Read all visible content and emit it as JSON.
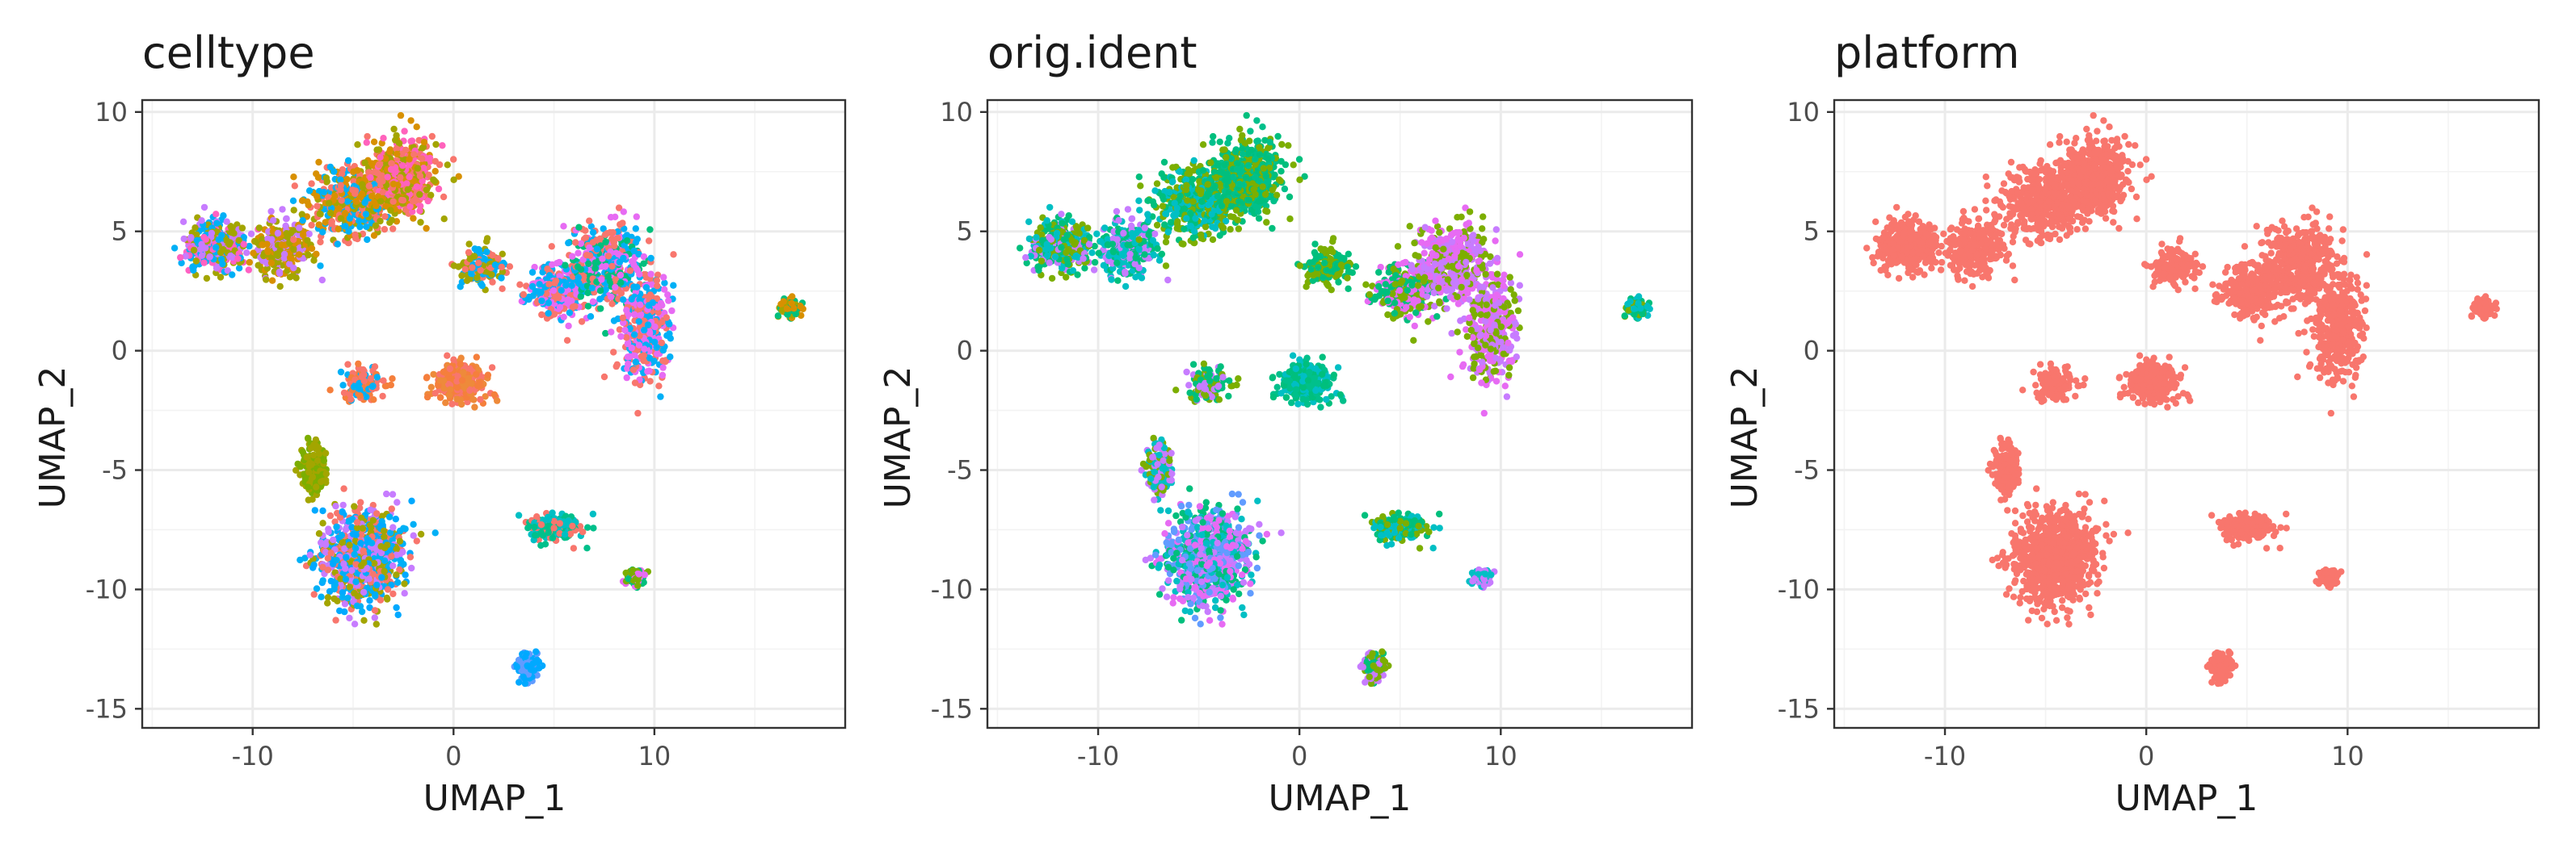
{
  "chart_data": [
    {
      "type": "scatter",
      "title": "celltype",
      "xlabel": "UMAP_1",
      "ylabel": "UMAP_2",
      "xlim": [
        -15.5,
        19.5
      ],
      "ylim": [
        -15.8,
        10.5
      ],
      "xticks": [
        -10,
        0,
        10
      ],
      "yticks": [
        10,
        5,
        0,
        -5,
        -10,
        -15
      ],
      "grid": true,
      "legend": "none",
      "clusters": [
        {
          "cx": -11.8,
          "cy": 4.4,
          "sx": 1.5,
          "sy": 0.9,
          "n": 340,
          "colors": [
            "#C77CFF",
            "#FF61C3",
            "#A3A500",
            "#00B0F6"
          ]
        },
        {
          "cx": -8.5,
          "cy": 4.3,
          "sx": 1.4,
          "sy": 1.1,
          "n": 280,
          "colors": [
            "#A3A500",
            "#D89000",
            "#C77CFF"
          ]
        },
        {
          "cx": -5.0,
          "cy": 6.2,
          "sx": 2.0,
          "sy": 1.3,
          "n": 420,
          "colors": [
            "#D89000",
            "#A3A500",
            "#00B0F6",
            "#F8766D"
          ]
        },
        {
          "cx": -2.5,
          "cy": 7.4,
          "sx": 1.6,
          "sy": 1.4,
          "n": 420,
          "colors": [
            "#F8766D",
            "#D89000",
            "#FF62BC",
            "#A3A500"
          ]
        },
        {
          "cx": 1.5,
          "cy": 3.5,
          "sx": 1.0,
          "sy": 0.7,
          "n": 160,
          "colors": [
            "#00B0F6",
            "#A3A500",
            "#F8766D"
          ]
        },
        {
          "cx": 5.3,
          "cy": 2.5,
          "sx": 1.4,
          "sy": 1.0,
          "n": 300,
          "colors": [
            "#F8766D",
            "#E76BF3",
            "#00B0F6"
          ]
        },
        {
          "cx": 7.6,
          "cy": 3.6,
          "sx": 1.5,
          "sy": 1.5,
          "n": 420,
          "colors": [
            "#F8766D",
            "#E76BF3",
            "#00B0F6",
            "#00BF7D"
          ]
        },
        {
          "cx": 9.5,
          "cy": 1.0,
          "sx": 1.1,
          "sy": 2.0,
          "n": 380,
          "colors": [
            "#F8766D",
            "#E76BF3",
            "#00B0F6"
          ]
        },
        {
          "cx": 16.7,
          "cy": 1.8,
          "sx": 0.55,
          "sy": 0.35,
          "n": 80,
          "colors": [
            "#A3A500",
            "#D89000",
            "#00BF7D"
          ]
        },
        {
          "cx": -4.5,
          "cy": -1.4,
          "sx": 0.9,
          "sy": 0.6,
          "n": 120,
          "colors": [
            "#F8766D",
            "#F57F3C",
            "#00B0F6"
          ]
        },
        {
          "cx": 0.2,
          "cy": -1.3,
          "sx": 1.2,
          "sy": 0.8,
          "n": 260,
          "colors": [
            "#F57F3C",
            "#EE8A3A",
            "#F8766D"
          ]
        },
        {
          "cx": -7.0,
          "cy": -5.0,
          "sx": 0.6,
          "sy": 1.0,
          "n": 140,
          "colors": [
            "#A3A500",
            "#7CAE00"
          ]
        },
        {
          "cx": -4.6,
          "cy": -8.6,
          "sx": 1.8,
          "sy": 1.7,
          "n": 900,
          "colors": [
            "#00B0F6",
            "#00A9FF",
            "#C77CFF",
            "#F8766D",
            "#A3A500"
          ]
        },
        {
          "cx": 5.0,
          "cy": -7.4,
          "sx": 1.2,
          "sy": 0.5,
          "n": 200,
          "colors": [
            "#00BFC4",
            "#00C08B",
            "#F8766D"
          ]
        },
        {
          "cx": 9.0,
          "cy": -9.5,
          "sx": 0.45,
          "sy": 0.3,
          "n": 70,
          "colors": [
            "#00BF7D",
            "#7CAE00",
            "#E76BF3"
          ]
        },
        {
          "cx": 3.7,
          "cy": -13.3,
          "sx": 0.55,
          "sy": 0.6,
          "n": 110,
          "colors": [
            "#619CFF",
            "#00A9FF"
          ]
        }
      ]
    },
    {
      "type": "scatter",
      "title": "orig.ident",
      "xlabel": "UMAP_1",
      "ylabel": "UMAP_2",
      "xlim": [
        -15.5,
        19.5
      ],
      "ylim": [
        -15.8,
        10.5
      ],
      "xticks": [
        -10,
        0,
        10
      ],
      "yticks": [
        10,
        5,
        0,
        -5,
        -10,
        -15
      ],
      "grid": true,
      "legend": "none",
      "clusters": [
        {
          "cx": -11.8,
          "cy": 4.4,
          "sx": 1.5,
          "sy": 0.9,
          "n": 340,
          "colors": [
            "#00BFC4",
            "#C77CFF",
            "#7CAE00",
            "#00BF7D"
          ]
        },
        {
          "cx": -8.5,
          "cy": 4.3,
          "sx": 1.4,
          "sy": 1.1,
          "n": 280,
          "colors": [
            "#00BFC4",
            "#00BF7D",
            "#C77CFF"
          ]
        },
        {
          "cx": -5.0,
          "cy": 6.2,
          "sx": 2.0,
          "sy": 1.3,
          "n": 420,
          "colors": [
            "#00BF7D",
            "#00BFC4",
            "#7CAE00"
          ]
        },
        {
          "cx": -2.5,
          "cy": 7.4,
          "sx": 1.6,
          "sy": 1.4,
          "n": 420,
          "colors": [
            "#00BF7D",
            "#00C08B",
            "#7CAE00"
          ]
        },
        {
          "cx": 1.5,
          "cy": 3.5,
          "sx": 1.0,
          "sy": 0.7,
          "n": 160,
          "colors": [
            "#7CAE00",
            "#00BF7D"
          ]
        },
        {
          "cx": 5.3,
          "cy": 2.5,
          "sx": 1.4,
          "sy": 1.0,
          "n": 300,
          "colors": [
            "#7CAE00",
            "#E76BF3",
            "#00BF7D"
          ]
        },
        {
          "cx": 7.6,
          "cy": 3.6,
          "sx": 1.5,
          "sy": 1.5,
          "n": 420,
          "colors": [
            "#E76BF3",
            "#7CAE00",
            "#C77CFF"
          ]
        },
        {
          "cx": 9.5,
          "cy": 1.0,
          "sx": 1.1,
          "sy": 2.0,
          "n": 380,
          "colors": [
            "#E76BF3",
            "#7CAE00",
            "#C77CFF"
          ]
        },
        {
          "cx": 16.7,
          "cy": 1.8,
          "sx": 0.55,
          "sy": 0.35,
          "n": 80,
          "colors": [
            "#7CAE00",
            "#00BFC4",
            "#00BF7D"
          ]
        },
        {
          "cx": -4.5,
          "cy": -1.4,
          "sx": 0.9,
          "sy": 0.6,
          "n": 120,
          "colors": [
            "#00BF7D",
            "#7CAE00",
            "#C77CFF"
          ]
        },
        {
          "cx": 0.2,
          "cy": -1.3,
          "sx": 1.2,
          "sy": 0.8,
          "n": 260,
          "colors": [
            "#00BF7D",
            "#00C08B",
            "#00BFC4"
          ]
        },
        {
          "cx": -7.0,
          "cy": -5.0,
          "sx": 0.6,
          "sy": 1.0,
          "n": 140,
          "colors": [
            "#C77CFF",
            "#00BFC4",
            "#7CAE00"
          ]
        },
        {
          "cx": -4.6,
          "cy": -8.6,
          "sx": 1.8,
          "sy": 1.7,
          "n": 900,
          "colors": [
            "#C77CFF",
            "#00BFC4",
            "#619CFF",
            "#00BF7D",
            "#E76BF3"
          ]
        },
        {
          "cx": 5.0,
          "cy": -7.4,
          "sx": 1.2,
          "sy": 0.5,
          "n": 200,
          "colors": [
            "#00BF7D",
            "#00BFC4",
            "#7CAE00"
          ]
        },
        {
          "cx": 9.0,
          "cy": -9.5,
          "sx": 0.45,
          "sy": 0.3,
          "n": 70,
          "colors": [
            "#C77CFF",
            "#00BFC4"
          ]
        },
        {
          "cx": 3.7,
          "cy": -13.3,
          "sx": 0.55,
          "sy": 0.6,
          "n": 110,
          "colors": [
            "#00BF7D",
            "#C77CFF",
            "#7CAE00"
          ]
        }
      ]
    },
    {
      "type": "scatter",
      "title": "platform",
      "xlabel": "UMAP_1",
      "ylabel": "UMAP_2",
      "xlim": [
        -15.5,
        19.5
      ],
      "ylim": [
        -15.8,
        10.5
      ],
      "xticks": [
        -10,
        0,
        10
      ],
      "yticks": [
        10,
        5,
        0,
        -5,
        -10,
        -15
      ],
      "grid": true,
      "legend": "none",
      "clusters": [
        {
          "cx": -11.8,
          "cy": 4.4,
          "sx": 1.5,
          "sy": 0.9,
          "n": 340,
          "colors": [
            "#F8766D"
          ]
        },
        {
          "cx": -8.5,
          "cy": 4.3,
          "sx": 1.4,
          "sy": 1.1,
          "n": 280,
          "colors": [
            "#F8766D"
          ]
        },
        {
          "cx": -5.0,
          "cy": 6.2,
          "sx": 2.0,
          "sy": 1.3,
          "n": 420,
          "colors": [
            "#F8766D"
          ]
        },
        {
          "cx": -2.5,
          "cy": 7.4,
          "sx": 1.6,
          "sy": 1.4,
          "n": 420,
          "colors": [
            "#F8766D"
          ]
        },
        {
          "cx": 1.5,
          "cy": 3.5,
          "sx": 1.0,
          "sy": 0.7,
          "n": 160,
          "colors": [
            "#F8766D"
          ]
        },
        {
          "cx": 5.3,
          "cy": 2.5,
          "sx": 1.4,
          "sy": 1.0,
          "n": 300,
          "colors": [
            "#F8766D"
          ]
        },
        {
          "cx": 7.6,
          "cy": 3.6,
          "sx": 1.5,
          "sy": 1.5,
          "n": 420,
          "colors": [
            "#F8766D"
          ]
        },
        {
          "cx": 9.5,
          "cy": 1.0,
          "sx": 1.1,
          "sy": 2.0,
          "n": 380,
          "colors": [
            "#F8766D"
          ]
        },
        {
          "cx": 16.7,
          "cy": 1.8,
          "sx": 0.55,
          "sy": 0.35,
          "n": 80,
          "colors": [
            "#F8766D"
          ]
        },
        {
          "cx": -4.5,
          "cy": -1.4,
          "sx": 0.9,
          "sy": 0.6,
          "n": 120,
          "colors": [
            "#F8766D"
          ]
        },
        {
          "cx": 0.2,
          "cy": -1.3,
          "sx": 1.2,
          "sy": 0.8,
          "n": 260,
          "colors": [
            "#F8766D"
          ]
        },
        {
          "cx": -7.0,
          "cy": -5.0,
          "sx": 0.6,
          "sy": 1.0,
          "n": 140,
          "colors": [
            "#F8766D"
          ]
        },
        {
          "cx": -4.6,
          "cy": -8.6,
          "sx": 1.8,
          "sy": 1.7,
          "n": 900,
          "colors": [
            "#F8766D"
          ]
        },
        {
          "cx": 5.0,
          "cy": -7.4,
          "sx": 1.2,
          "sy": 0.5,
          "n": 200,
          "colors": [
            "#F8766D"
          ]
        },
        {
          "cx": 9.0,
          "cy": -9.5,
          "sx": 0.45,
          "sy": 0.3,
          "n": 70,
          "colors": [
            "#F8766D"
          ]
        },
        {
          "cx": 3.7,
          "cy": -13.3,
          "sx": 0.55,
          "sy": 0.6,
          "n": 110,
          "colors": [
            "#F8766D"
          ]
        }
      ]
    }
  ]
}
